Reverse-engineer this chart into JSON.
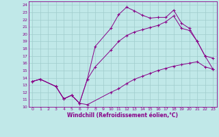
{
  "xlabel": "Windchill (Refroidissement éolien,°C)",
  "bg_color": "#c0e8e8",
  "grid_color": "#a0cccc",
  "line_color": "#880088",
  "xlim": [
    -0.5,
    23.5
  ],
  "ylim": [
    10,
    24.5
  ],
  "xticks": [
    0,
    1,
    2,
    3,
    4,
    5,
    6,
    7,
    8,
    9,
    10,
    11,
    12,
    13,
    14,
    15,
    16,
    17,
    18,
    19,
    20,
    21,
    22,
    23
  ],
  "yticks": [
    10,
    11,
    12,
    13,
    14,
    15,
    16,
    17,
    18,
    19,
    20,
    21,
    22,
    23,
    24
  ],
  "line1_x": [
    0,
    1,
    3,
    4,
    5,
    6,
    7,
    10,
    11,
    12,
    13,
    14,
    15,
    16,
    17,
    18,
    19,
    20,
    21,
    22,
    23
  ],
  "line1_y": [
    13.5,
    13.8,
    12.8,
    11.1,
    11.6,
    10.5,
    10.3,
    12.0,
    12.5,
    13.2,
    13.8,
    14.2,
    14.6,
    15.0,
    15.3,
    15.6,
    15.8,
    16.0,
    16.2,
    15.5,
    15.2
  ],
  "line2_x": [
    0,
    1,
    3,
    4,
    5,
    6,
    7,
    8,
    10,
    11,
    12,
    13,
    14,
    15,
    16,
    17,
    18,
    19,
    20,
    21,
    22,
    23
  ],
  "line2_y": [
    13.5,
    13.8,
    12.8,
    11.1,
    11.6,
    10.5,
    13.8,
    18.3,
    20.8,
    22.7,
    23.7,
    23.2,
    22.6,
    22.2,
    22.3,
    22.3,
    23.3,
    21.5,
    20.8,
    19.0,
    17.0,
    15.2
  ],
  "line3_x": [
    0,
    1,
    3,
    4,
    5,
    6,
    7,
    8,
    10,
    11,
    12,
    13,
    14,
    15,
    16,
    17,
    18,
    19,
    20,
    21,
    22,
    23
  ],
  "line3_y": [
    13.5,
    13.8,
    12.8,
    11.1,
    11.6,
    10.5,
    13.8,
    15.5,
    17.8,
    19.0,
    19.8,
    20.3,
    20.6,
    20.9,
    21.2,
    21.7,
    22.5,
    20.8,
    20.5,
    19.0,
    17.0,
    16.7
  ]
}
